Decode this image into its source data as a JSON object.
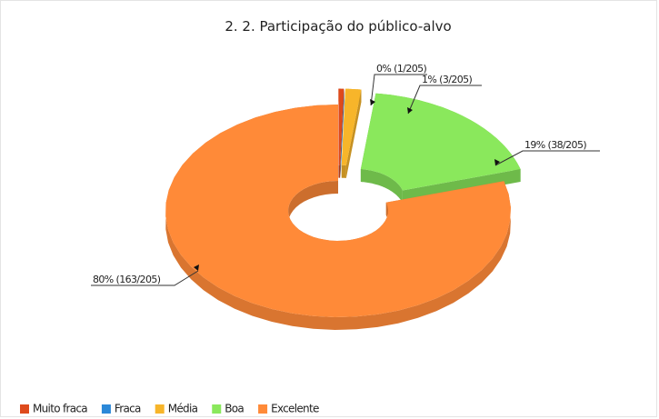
{
  "chart_data": {
    "type": "pie",
    "title": "2. 2. Participação do público-alvo",
    "categories": [
      "Muito fraca",
      "Fraca",
      "Média",
      "Boa",
      "Excelente"
    ],
    "values": [
      1,
      0,
      3,
      38,
      163
    ],
    "value_labels": [
      "0% (1/205)",
      null,
      "1% (3/205)",
      "19% (38/205)",
      "80% (163/205)"
    ],
    "colors": [
      "#de4a1c",
      "#2b88d8",
      "#f7b52a",
      "#8ae85c",
      "#ff8a38"
    ],
    "donut": true,
    "legend": "bottom-left"
  }
}
